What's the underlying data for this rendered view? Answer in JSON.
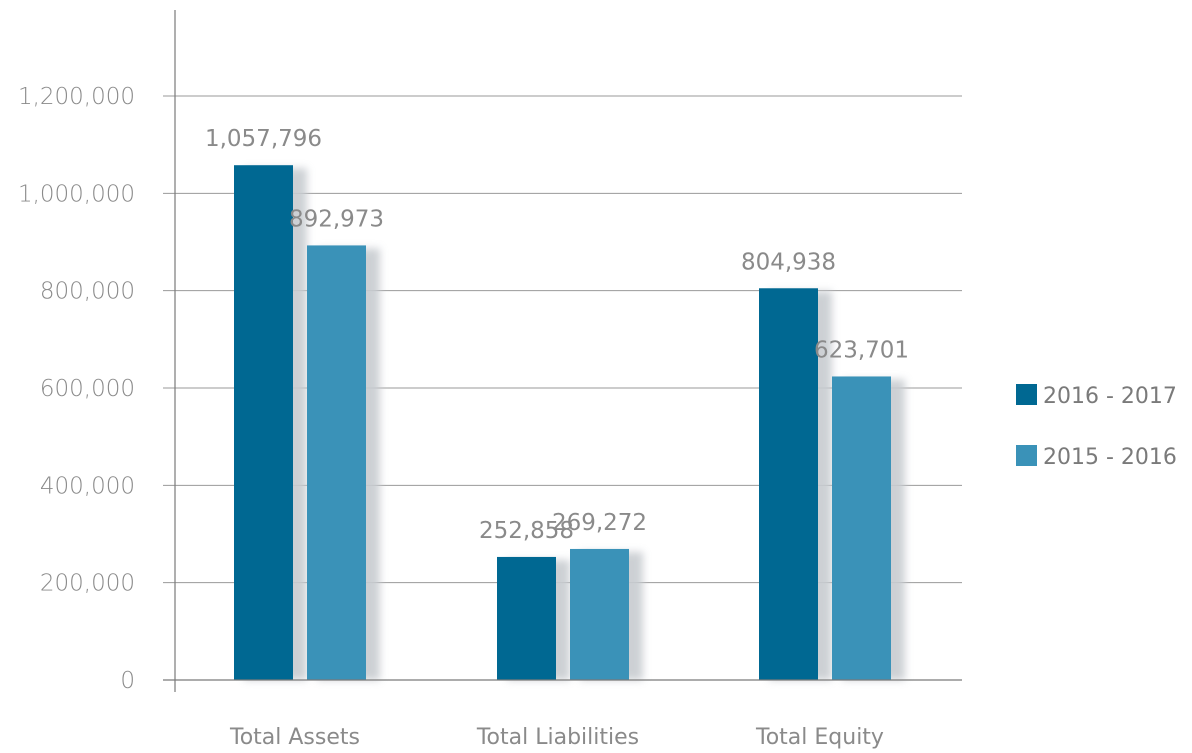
{
  "chart_data": {
    "type": "bar",
    "title": "",
    "xlabel": "",
    "ylabel": "",
    "categories": [
      "Total Assets",
      "Total Liabilities",
      "Total Equity"
    ],
    "series": [
      {
        "name": "2016 - 2017",
        "color": "#006892",
        "values": [
          1057796,
          252858,
          804938
        ],
        "labels": [
          "1,057,796",
          "252,858",
          "804,938"
        ]
      },
      {
        "name": "2015 - 2016",
        "color": "#3a92b8",
        "values": [
          892973,
          269272,
          623701
        ],
        "labels": [
          "892,973",
          "269,272",
          "623,701"
        ]
      }
    ],
    "ylim": [
      0,
      1200000
    ],
    "yticks": [
      0,
      200000,
      400000,
      600000,
      800000,
      1000000,
      1200000
    ],
    "ytick_labels": [
      "0",
      "200,000",
      "400,000",
      "600,000",
      "800,000",
      "1,000,000",
      "1,200,000"
    ],
    "grid": true,
    "legend_position": "right",
    "colors": {
      "grid": "#9a9a9a",
      "axis": "#7a7a7a",
      "text": "#8a8a8a",
      "shadow": "#c8ccd0"
    }
  }
}
